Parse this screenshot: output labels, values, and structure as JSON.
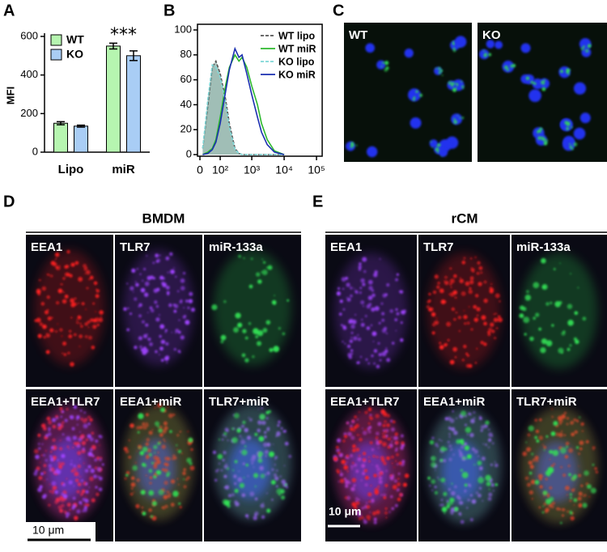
{
  "panel_labels": [
    "A",
    "B",
    "C",
    "D",
    "E"
  ],
  "chart_data": [
    {
      "type": "bar",
      "ylabel": "MFI",
      "categories": [
        "Lipo",
        "miR"
      ],
      "series": [
        {
          "name": "WT",
          "color": "#b6f5b0",
          "values": [
            150,
            550
          ],
          "errors": [
            8,
            15
          ]
        },
        {
          "name": "KO",
          "color": "#a9cdf5",
          "values": [
            135,
            500
          ],
          "errors": [
            5,
            25
          ]
        }
      ],
      "annotation": "***",
      "ylim": [
        0,
        600
      ],
      "yticks": [
        0,
        200,
        400,
        600
      ],
      "legend": "upper left"
    },
    {
      "type": "line",
      "xscale": "asinh",
      "x": [
        10,
        30,
        50,
        70,
        100,
        150,
        200,
        300,
        400,
        500,
        700,
        1000,
        1500,
        2000,
        3000,
        5000,
        10000
      ],
      "series": [
        {
          "name": "WT lipo",
          "color": "#555555",
          "dash": true,
          "fill": "#9dbcb4",
          "values": [
            5,
            40,
            70,
            75,
            65,
            45,
            25,
            5,
            1,
            0,
            0,
            0,
            0,
            0,
            0,
            0,
            0
          ]
        },
        {
          "name": "WT miR",
          "color": "#2db82d",
          "values": [
            0,
            2,
            5,
            12,
            30,
            55,
            70,
            80,
            75,
            78,
            70,
            55,
            40,
            25,
            12,
            3,
            0
          ]
        },
        {
          "name": "KO lipo",
          "color": "#7fd8d8",
          "dash": true,
          "fill": "#9dbcb4",
          "values": [
            5,
            45,
            72,
            70,
            62,
            42,
            22,
            4,
            1,
            0,
            0,
            0,
            0,
            0,
            0,
            0,
            0
          ]
        },
        {
          "name": "KO miR",
          "color": "#1a2fb0",
          "values": [
            0,
            1,
            4,
            10,
            25,
            50,
            68,
            85,
            78,
            80,
            65,
            48,
            30,
            18,
            8,
            2,
            0
          ]
        }
      ],
      "xlim": [
        0,
        100000
      ],
      "xticks": [
        0,
        {
          "value": 100,
          "label": "10²"
        },
        {
          "value": 1000,
          "label": "10³"
        },
        {
          "value": 10000,
          "label": "10⁴"
        },
        {
          "value": 100000,
          "label": "10⁵"
        }
      ],
      "ylim": [
        0,
        100
      ],
      "yticks": [
        0,
        20,
        40,
        60,
        80,
        100
      ],
      "legend": "upper right"
    }
  ],
  "panel_c": {
    "labels": [
      "WT",
      "KO"
    ]
  },
  "panel_d": {
    "title": "BMDM",
    "labels": [
      "EEA1",
      "TLR7",
      "miR-133a",
      "EEA1+TLR7",
      "EEA1+miR",
      "TLR7+miR"
    ],
    "scale_bar": "10 μm"
  },
  "panel_e": {
    "title": "rCM",
    "labels": [
      "EEA1",
      "TLR7",
      "miR-133a",
      "EEA1+TLR7",
      "EEA1+miR",
      "TLR7+miR"
    ],
    "scale_bar": "10 μm"
  }
}
